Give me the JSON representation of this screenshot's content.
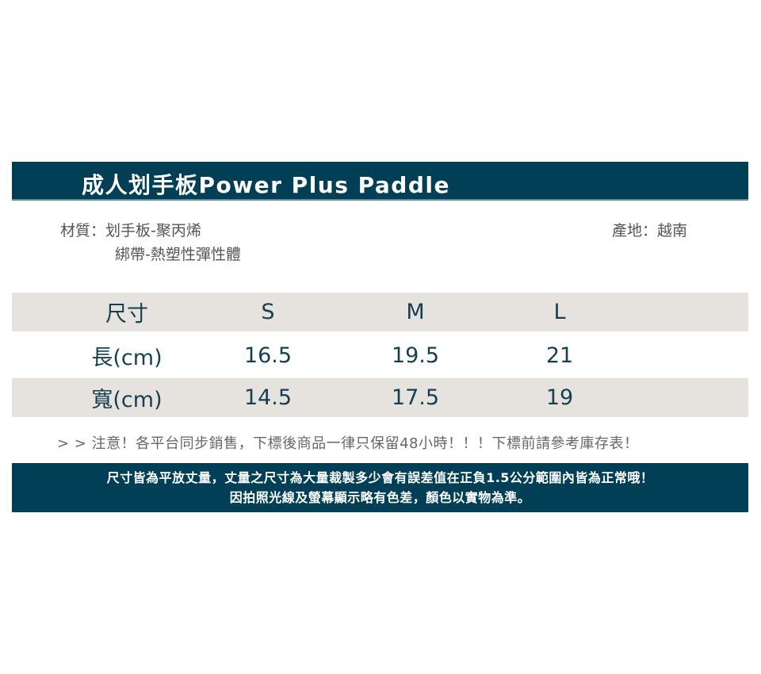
{
  "title": "成人划手板Power Plus Paddle",
  "material": {
    "line1": "材質：划手板-聚丙烯",
    "line2": "綁帶-熱塑性彈性體"
  },
  "origin": "產地：越南",
  "table": {
    "headers": [
      "尺寸",
      "S",
      "M",
      "L"
    ],
    "rows": [
      [
        "長(cm)",
        "16.5",
        "19.5",
        "21"
      ],
      [
        "寬(cm)",
        "14.5",
        "17.5",
        "19"
      ]
    ]
  },
  "notice": "> > 注意！各平台同步銷售，下標後商品一律只保留48小時！！！下標前請參考庫存表！",
  "footer": {
    "line1": "尺寸皆為平放丈量，丈量之尺寸為大量裁製多少會有誤差值在正負1.5公分範圍內皆為正常哦！",
    "line2": "因拍照光線及螢幕顯示略有色差，顏色以實物為準。"
  },
  "colors": {
    "brand": "#003f56",
    "table_stripe": "#e6e3df",
    "table_text": "#153f52"
  }
}
